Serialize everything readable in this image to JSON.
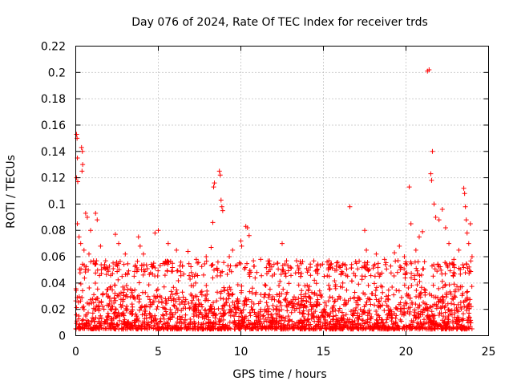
{
  "chart_data": {
    "type": "scatter",
    "title": "Day 076 of 2024, Rate Of TEC Index for receiver trds",
    "xlabel": "GPS time / hours",
    "ylabel": "ROTI / TECUs",
    "xlim": [
      0,
      25
    ],
    "ylim": [
      0,
      0.22
    ],
    "xticks": [
      0,
      5,
      10,
      15,
      20,
      25
    ],
    "yticks": [
      0,
      0.02,
      0.04,
      0.06,
      0.08,
      0.1,
      0.12,
      0.14,
      0.16,
      0.18,
      0.2,
      0.22
    ],
    "grid": true,
    "marker": "+",
    "color": "#ff0000",
    "series": [
      {
        "name": "ROTI",
        "data_extent_hours": [
          0,
          24
        ],
        "typical_band": [
          0.005,
          0.045
        ],
        "points": [
          [
            0.05,
            0.153
          ],
          [
            0.08,
            0.15
          ],
          [
            0.1,
            0.135
          ],
          [
            0.05,
            0.12
          ],
          [
            0.12,
            0.117
          ],
          [
            0.35,
            0.143
          ],
          [
            0.4,
            0.14
          ],
          [
            0.38,
            0.125
          ],
          [
            0.42,
            0.13
          ],
          [
            0.6,
            0.093
          ],
          [
            0.7,
            0.09
          ],
          [
            0.9,
            0.08
          ],
          [
            1.2,
            0.093
          ],
          [
            1.3,
            0.088
          ],
          [
            0.1,
            0.085
          ],
          [
            0.2,
            0.075
          ],
          [
            0.3,
            0.07
          ],
          [
            0.5,
            0.065
          ],
          [
            0.8,
            0.062
          ],
          [
            1.5,
            0.068
          ],
          [
            2.4,
            0.077
          ],
          [
            2.6,
            0.07
          ],
          [
            3.0,
            0.062
          ],
          [
            3.8,
            0.075
          ],
          [
            3.9,
            0.068
          ],
          [
            4.1,
            0.062
          ],
          [
            4.8,
            0.078
          ],
          [
            5.0,
            0.08
          ],
          [
            5.6,
            0.07
          ],
          [
            6.1,
            0.065
          ],
          [
            6.8,
            0.064
          ],
          [
            7.3,
            0.058
          ],
          [
            7.9,
            0.06
          ],
          [
            8.2,
            0.067
          ],
          [
            8.3,
            0.086
          ],
          [
            8.35,
            0.113
          ],
          [
            8.4,
            0.116
          ],
          [
            8.7,
            0.125
          ],
          [
            8.75,
            0.122
          ],
          [
            8.8,
            0.103
          ],
          [
            8.85,
            0.098
          ],
          [
            8.9,
            0.095
          ],
          [
            9.3,
            0.06
          ],
          [
            9.5,
            0.065
          ],
          [
            10.0,
            0.072
          ],
          [
            10.05,
            0.068
          ],
          [
            10.3,
            0.083
          ],
          [
            10.4,
            0.082
          ],
          [
            10.5,
            0.076
          ],
          [
            11.2,
            0.058
          ],
          [
            11.7,
            0.055
          ],
          [
            12.5,
            0.07
          ],
          [
            13.0,
            0.052
          ],
          [
            13.5,
            0.048
          ],
          [
            14.2,
            0.052
          ],
          [
            14.6,
            0.05
          ],
          [
            15.3,
            0.05
          ],
          [
            16.0,
            0.052
          ],
          [
            16.3,
            0.054
          ],
          [
            16.6,
            0.098
          ],
          [
            17.0,
            0.055
          ],
          [
            17.5,
            0.08
          ],
          [
            17.6,
            0.065
          ],
          [
            18.2,
            0.062
          ],
          [
            18.7,
            0.058
          ],
          [
            19.3,
            0.063
          ],
          [
            19.6,
            0.068
          ],
          [
            19.9,
            0.06
          ],
          [
            20.2,
            0.113
          ],
          [
            20.3,
            0.085
          ],
          [
            20.6,
            0.065
          ],
          [
            20.8,
            0.075
          ],
          [
            21.0,
            0.079
          ],
          [
            21.3,
            0.201
          ],
          [
            21.4,
            0.202
          ],
          [
            21.5,
            0.123
          ],
          [
            21.55,
            0.118
          ],
          [
            21.6,
            0.14
          ],
          [
            21.7,
            0.1
          ],
          [
            21.8,
            0.09
          ],
          [
            22.0,
            0.088
          ],
          [
            22.2,
            0.096
          ],
          [
            22.4,
            0.082
          ],
          [
            22.6,
            0.07
          ],
          [
            22.9,
            0.058
          ],
          [
            23.2,
            0.065
          ],
          [
            23.5,
            0.112
          ],
          [
            23.55,
            0.108
          ],
          [
            23.6,
            0.098
          ],
          [
            23.65,
            0.088
          ],
          [
            23.7,
            0.078
          ],
          [
            23.8,
            0.07
          ],
          [
            23.9,
            0.085
          ],
          [
            24.0,
            0.06
          ]
        ]
      }
    ]
  }
}
